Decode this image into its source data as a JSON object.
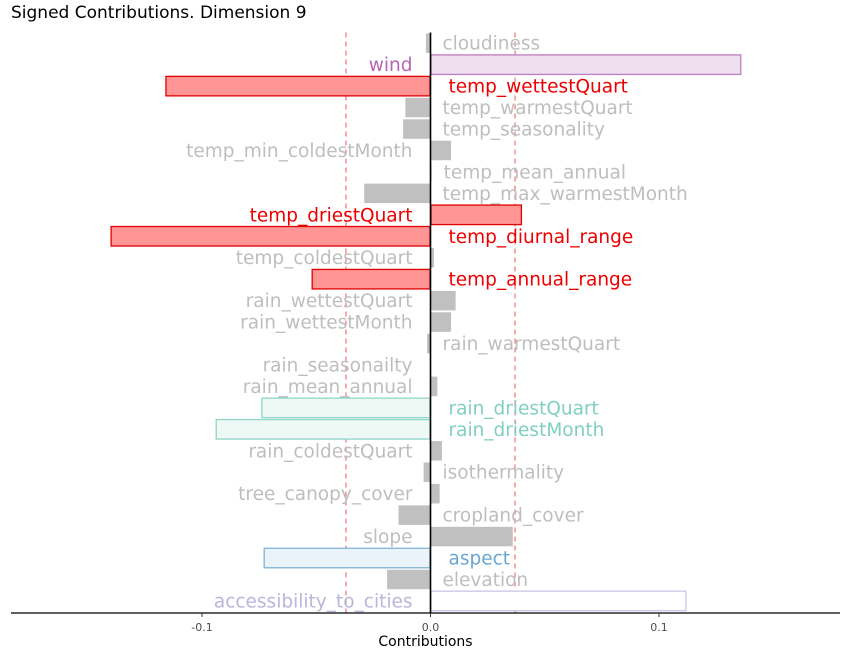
{
  "chart_data": {
    "type": "bar",
    "orientation": "horizontal",
    "title": "Signed Contributions. Dimension 9",
    "xlabel": "Contributions",
    "ylabel": "",
    "xlim": [
      -0.183,
      0.179
    ],
    "xticks": [
      -0.1,
      0.0,
      0.1
    ],
    "xtick_labels": [
      "-0.1",
      "0.0",
      "0.1"
    ],
    "reference_lines": [
      -0.037,
      0.037
    ],
    "grid": false,
    "legend": "none",
    "bars": [
      {
        "label": "cloudiness",
        "value": -0.002,
        "highlight": false,
        "label_side": "right"
      },
      {
        "label": "wind",
        "value": 0.136,
        "highlight": true,
        "fill": "#efe0f0",
        "stroke": "#c07cc0",
        "text_color": "#b565b5",
        "label_side": "left"
      },
      {
        "label": "temp_wettestQuart",
        "value": -0.116,
        "highlight": true,
        "fill": "#ff9595",
        "stroke": "#e00000",
        "text_color": "#ee0000",
        "label_side": "right"
      },
      {
        "label": "temp_warmestQuart",
        "value": -0.011,
        "highlight": false,
        "label_side": "right"
      },
      {
        "label": "temp_seasonality",
        "value": -0.012,
        "highlight": false,
        "label_side": "right"
      },
      {
        "label": "temp_min_coldestMonth",
        "value": 0.009,
        "highlight": false,
        "label_side": "left"
      },
      {
        "label": "temp_mean_annual",
        "value": 0.0005,
        "highlight": false,
        "label_side": "right"
      },
      {
        "label": "temp_max_warmestMonth",
        "value": -0.029,
        "highlight": false,
        "label_side": "right"
      },
      {
        "label": "temp_driestQuart",
        "value": 0.04,
        "highlight": true,
        "fill": "#ff9595",
        "stroke": "#e00000",
        "text_color": "#ee0000",
        "label_side": "left"
      },
      {
        "label": "temp_diurnal_range",
        "value": -0.14,
        "highlight": true,
        "fill": "#ff9595",
        "stroke": "#e00000",
        "text_color": "#ee0000",
        "label_side": "right"
      },
      {
        "label": "temp_coldestQuart",
        "value": 0.0015,
        "highlight": false,
        "label_side": "left"
      },
      {
        "label": "temp_annual_range",
        "value": -0.052,
        "highlight": true,
        "fill": "#ff9595",
        "stroke": "#e00000",
        "text_color": "#ee0000",
        "label_side": "right"
      },
      {
        "label": "rain_wettestQuart",
        "value": 0.011,
        "highlight": false,
        "label_side": "left"
      },
      {
        "label": "rain_wettestMonth",
        "value": 0.009,
        "highlight": false,
        "label_side": "left"
      },
      {
        "label": "rain_warmestQuart",
        "value": -0.0015,
        "highlight": false,
        "label_side": "right"
      },
      {
        "label": "rain_seasonailty",
        "value": 0.0002,
        "highlight": false,
        "label_side": "left"
      },
      {
        "label": "rain_mean_annual",
        "value": 0.003,
        "highlight": false,
        "label_side": "left"
      },
      {
        "label": "rain_driestQuart",
        "value": -0.074,
        "highlight": true,
        "fill": "#eef8f5",
        "stroke": "#8fd6c8",
        "text_color": "#80cfc0",
        "label_side": "right"
      },
      {
        "label": "rain_driestMonth",
        "value": -0.094,
        "highlight": true,
        "fill": "#eef8f5",
        "stroke": "#8fd6c8",
        "text_color": "#80cfc0",
        "label_side": "right"
      },
      {
        "label": "rain_coldestQuart",
        "value": 0.005,
        "highlight": false,
        "label_side": "left"
      },
      {
        "label": "isothermality",
        "value": -0.003,
        "highlight": false,
        "label_side": "right"
      },
      {
        "label": "tree_canopy_cover",
        "value": 0.004,
        "highlight": false,
        "label_side": "left"
      },
      {
        "label": "cropland_cover",
        "value": -0.014,
        "highlight": false,
        "label_side": "right"
      },
      {
        "label": "slope",
        "value": 0.036,
        "highlight": false,
        "label_side": "left"
      },
      {
        "label": "aspect",
        "value": -0.073,
        "highlight": true,
        "fill": "#eaf3f9",
        "stroke": "#7fb4d6",
        "text_color": "#6aa6d0",
        "label_side": "right"
      },
      {
        "label": "elevation",
        "value": -0.019,
        "highlight": false,
        "label_side": "right"
      },
      {
        "label": "accessibility_to_cities",
        "value": 0.112,
        "highlight": true,
        "fill": "#ffffff",
        "stroke": "#c8c6e6",
        "text_color": "#b9b6dc",
        "label_side": "left"
      }
    ]
  }
}
